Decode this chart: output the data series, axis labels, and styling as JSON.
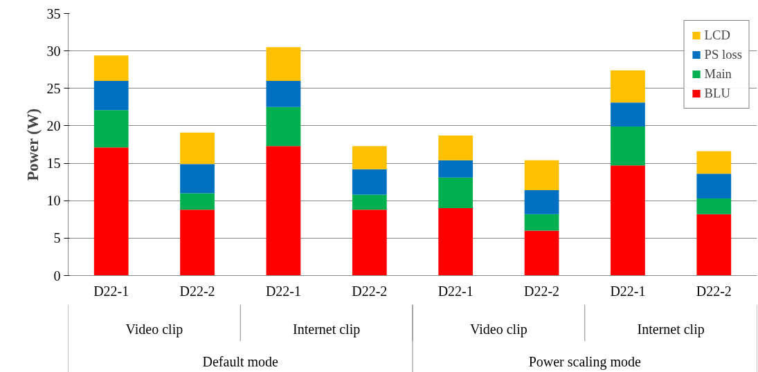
{
  "chart_data": {
    "type": "bar",
    "stacked": true,
    "ylabel": "Power (W)",
    "categories": [
      "D22-1",
      "D22-2",
      "D22-1",
      "D22-2",
      "D22-1",
      "D22-2",
      "D22-1",
      "D22-2"
    ],
    "series": [
      {
        "name": "BLU",
        "color": "#ff0000",
        "values": [
          17.1,
          8.8,
          17.3,
          8.8,
          9.0,
          6.0,
          14.7,
          8.2
        ]
      },
      {
        "name": "Main",
        "color": "#00b050",
        "values": [
          5.0,
          2.2,
          5.2,
          2.0,
          4.1,
          2.2,
          5.2,
          2.1
        ]
      },
      {
        "name": "PS loss",
        "color": "#0070c0",
        "values": [
          3.9,
          3.9,
          3.5,
          3.4,
          2.3,
          3.2,
          3.2,
          3.3
        ]
      },
      {
        "name": "LCD",
        "color": "#ffc000",
        "values": [
          3.4,
          4.2,
          4.5,
          3.1,
          3.3,
          4.0,
          4.3,
          3.0
        ]
      }
    ],
    "ylim": [
      0,
      35
    ],
    "yticks": [
      0,
      5,
      10,
      15,
      20,
      25,
      30,
      35
    ],
    "grid": "y",
    "legend": "top right",
    "annotations": [
      "Video clip",
      "Internet clip",
      "Video clip",
      "Internet clip",
      "Default mode",
      "Power scaling mode"
    ]
  }
}
